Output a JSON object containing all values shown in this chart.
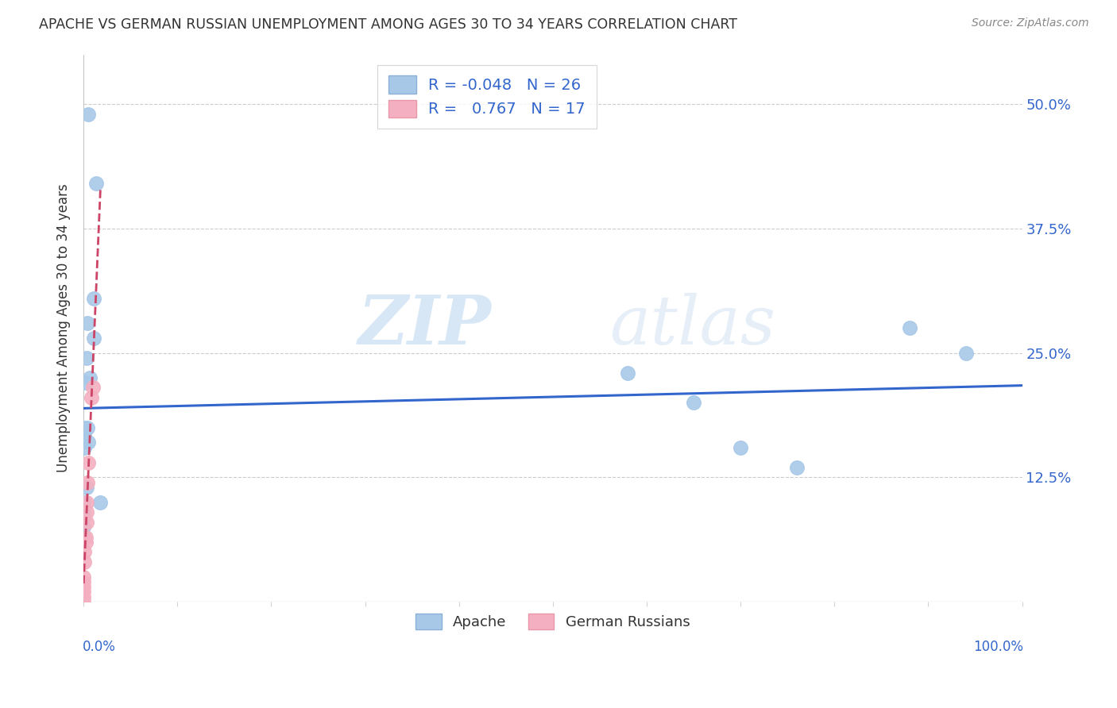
{
  "title": "APACHE VS GERMAN RUSSIAN UNEMPLOYMENT AMONG AGES 30 TO 34 YEARS CORRELATION CHART",
  "source": "Source: ZipAtlas.com",
  "ylabel": "Unemployment Among Ages 30 to 34 years",
  "ytick_labels": [
    "",
    "12.5%",
    "25.0%",
    "37.5%",
    "50.0%"
  ],
  "ytick_values": [
    0.0,
    0.125,
    0.25,
    0.375,
    0.5
  ],
  "xlim": [
    0.0,
    1.0
  ],
  "ylim": [
    0.0,
    0.55
  ],
  "legend_R_apache": "-0.048",
  "legend_N_apache": "26",
  "legend_R_german": "0.767",
  "legend_N_german": "17",
  "apache_color": "#a8c8e8",
  "german_color": "#f4b0c0",
  "apache_line_color": "#3366cc",
  "german_line_color": "#cc4466",
  "watermark_zip": "ZIP",
  "watermark_atlas": "atlas",
  "apache_x": [
    0.005,
    0.013,
    0.011,
    0.004,
    0.003,
    0.002,
    0.001,
    0.001,
    0.001,
    0.0,
    0.0,
    0.0,
    0.0,
    0.0,
    0.003,
    0.007,
    0.005,
    0.004,
    0.011,
    0.018,
    0.58,
    0.65,
    0.7,
    0.76,
    0.88,
    0.94
  ],
  "apache_y": [
    0.49,
    0.42,
    0.305,
    0.28,
    0.245,
    0.22,
    0.175,
    0.168,
    0.155,
    0.1,
    0.09,
    0.085,
    0.075,
    0.065,
    0.115,
    0.225,
    0.16,
    0.175,
    0.265,
    0.1,
    0.23,
    0.2,
    0.155,
    0.135,
    0.275,
    0.25
  ],
  "german_x": [
    0.0,
    0.0,
    0.0,
    0.0,
    0.0,
    0.0,
    0.001,
    0.001,
    0.002,
    0.002,
    0.003,
    0.003,
    0.003,
    0.004,
    0.005,
    0.008,
    0.01
  ],
  "german_y": [
    0.0,
    0.005,
    0.01,
    0.015,
    0.02,
    0.025,
    0.04,
    0.05,
    0.06,
    0.065,
    0.08,
    0.09,
    0.1,
    0.12,
    0.14,
    0.205,
    0.215
  ]
}
